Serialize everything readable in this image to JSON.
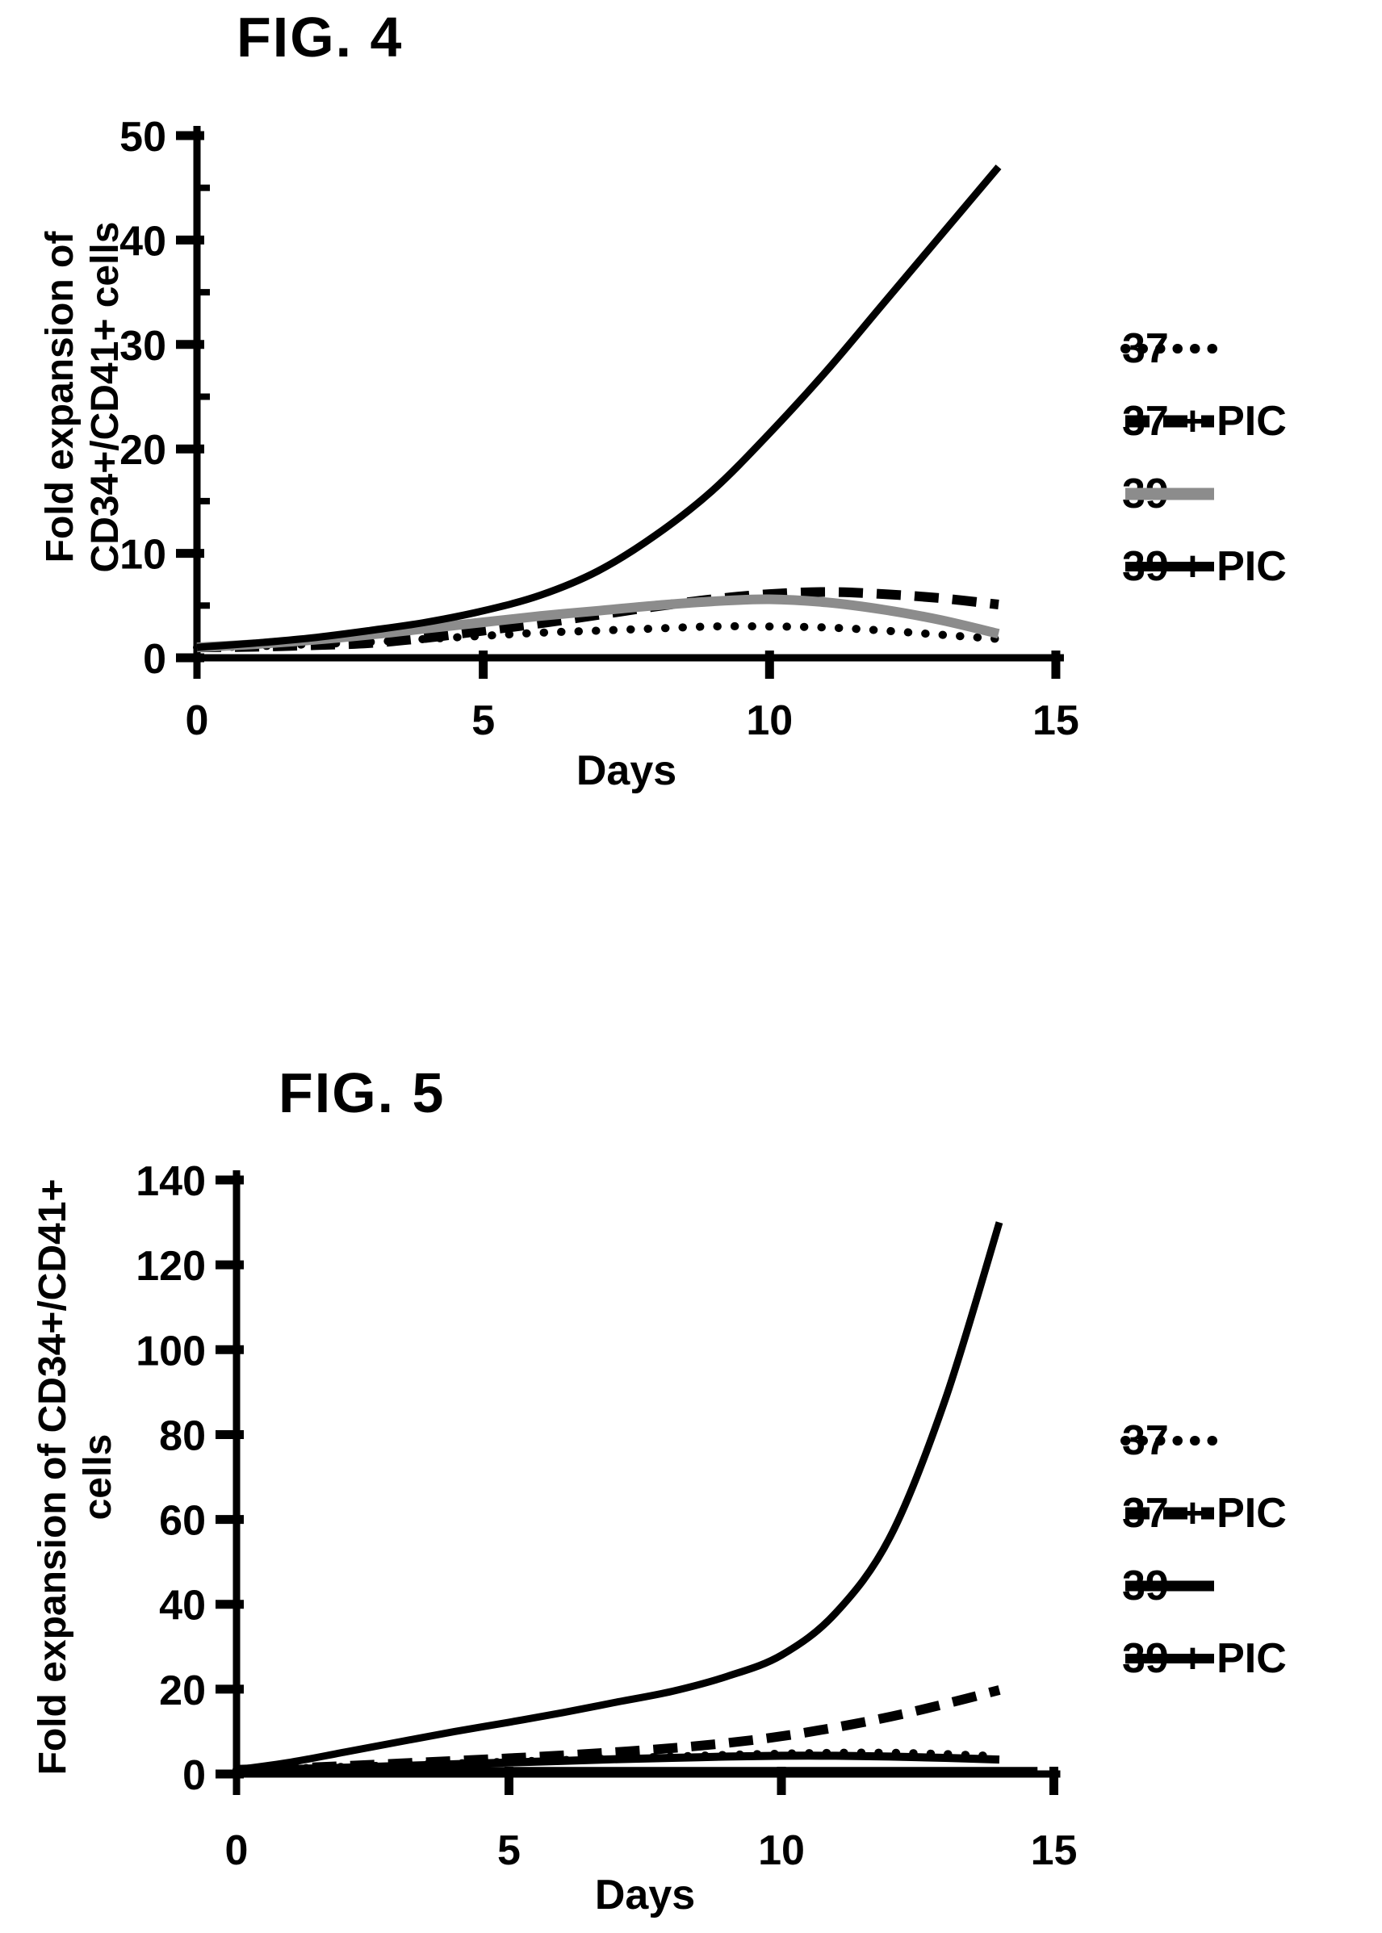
{
  "page": {
    "background": "#ffffff"
  },
  "figures": [
    {
      "title": "FIG. 4",
      "ylabel_line1": "Fold expansion of",
      "ylabel_line2": "CD34+/CD41+ cells",
      "xlabel": "Days"
    },
    {
      "title": "FIG. 5",
      "ylabel_line1": "Fold expansion of CD34+/CD41+",
      "ylabel_line2": "cells",
      "xlabel": "Days"
    }
  ],
  "chart_data": [
    {
      "type": "line",
      "title": "FIG. 4",
      "xlabel": "Days",
      "ylabel": "Fold expansion of CD34+/CD41+ cells",
      "xlim": [
        0,
        15
      ],
      "ylim": [
        0,
        50
      ],
      "xticks": [
        0,
        5,
        10,
        15
      ],
      "yticks": [
        0,
        10,
        20,
        30,
        40,
        50
      ],
      "yticks_minor": [
        5,
        15,
        25,
        35,
        45
      ],
      "grid": false,
      "legend_position": "right",
      "x": [
        0,
        1,
        2,
        3,
        4,
        5,
        6,
        7,
        8,
        9,
        10,
        11,
        12,
        13,
        14
      ],
      "series": [
        {
          "name": "37",
          "style": "dotted",
          "color": "#000000",
          "width": 10,
          "values": [
            1,
            1.1,
            1.3,
            1.5,
            1.8,
            2.1,
            2.4,
            2.6,
            2.8,
            3.0,
            3.0,
            2.9,
            2.6,
            2.2,
            1.8
          ]
        },
        {
          "name": "37 + PIC",
          "style": "dashed",
          "color": "#000000",
          "width": 12,
          "values": [
            1,
            1.05,
            1.2,
            1.4,
            1.9,
            2.6,
            3.3,
            4.1,
            4.9,
            5.6,
            6.1,
            6.3,
            6.1,
            5.7,
            5.1
          ]
        },
        {
          "name": "39",
          "style": "solid",
          "color": "#8c8c8c",
          "width": 12,
          "values": [
            1,
            1.3,
            1.7,
            2.2,
            2.8,
            3.4,
            4.0,
            4.5,
            5.0,
            5.4,
            5.6,
            5.3,
            4.6,
            3.6,
            2.3
          ]
        },
        {
          "name": "39 + PIC",
          "style": "solid",
          "color": "#000000",
          "width": 9,
          "values": [
            1,
            1.4,
            1.9,
            2.6,
            3.4,
            4.5,
            6.0,
            8.3,
            11.7,
            16,
            21.5,
            27.5,
            34,
            40.5,
            47
          ]
        }
      ]
    },
    {
      "type": "line",
      "title": "FIG. 5",
      "xlabel": "Days",
      "ylabel": "Fold expansion of CD34+/CD41+ cells",
      "xlim": [
        0,
        15
      ],
      "ylim": [
        0,
        140
      ],
      "xticks": [
        0,
        5,
        10,
        15
      ],
      "yticks": [
        0,
        20,
        40,
        60,
        80,
        100,
        120,
        140
      ],
      "yticks_minor": [],
      "grid": false,
      "legend_position": "right",
      "x": [
        0,
        1,
        2,
        3,
        4,
        5,
        6,
        7,
        8,
        9,
        10,
        11,
        12,
        13,
        14
      ],
      "series": [
        {
          "name": "37",
          "style": "dotted",
          "color": "#000000",
          "width": 10,
          "values": [
            1,
            1.3,
            1.7,
            2.1,
            2.5,
            2.9,
            3.3,
            3.7,
            4.1,
            4.5,
            4.8,
            5.0,
            5.0,
            4.7,
            4.2
          ]
        },
        {
          "name": "37 + PIC",
          "style": "dashed",
          "color": "#000000",
          "width": 12,
          "values": [
            1,
            1.4,
            1.9,
            2.5,
            3.1,
            3.7,
            4.4,
            5.2,
            6.1,
            7.3,
            8.9,
            11,
            13.5,
            16.5,
            19.8
          ]
        },
        {
          "name": "39",
          "style": "solid",
          "color": "#000000",
          "width": 10,
          "values": [
            1,
            1.2,
            1.5,
            1.9,
            2.3,
            2.7,
            3.1,
            3.5,
            3.8,
            4.1,
            4.3,
            4.3,
            4.1,
            3.8,
            3.4
          ]
        },
        {
          "name": "39 + PIC",
          "style": "solid",
          "color": "#000000",
          "width": 9,
          "values": [
            1,
            2.8,
            5.2,
            7.6,
            10,
            12.2,
            14.5,
            17,
            19.5,
            23,
            28,
            38,
            56,
            88,
            130
          ]
        }
      ],
      "extra_flat_line": {
        "start_day": 2.4,
        "end_day": 14.7,
        "value": 1.2
      }
    }
  ]
}
